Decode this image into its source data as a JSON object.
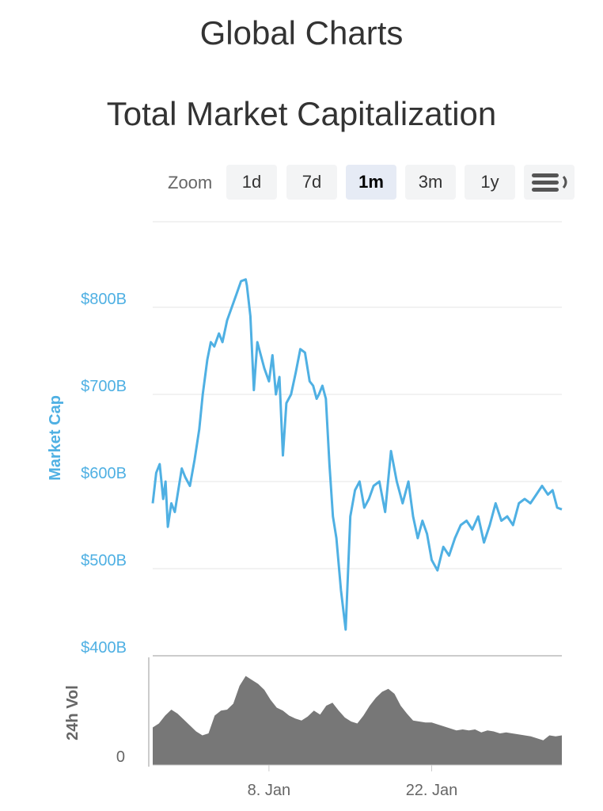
{
  "page": {
    "title": "Global Charts"
  },
  "zoom": {
    "label": "Zoom",
    "buttons": [
      "1d",
      "7d",
      "1m",
      "3m",
      "1y"
    ],
    "active": "1m"
  },
  "chart_data": {
    "type": "line",
    "title": "Total Market Capitalization",
    "colors": {
      "market_cap": "#4fb0e3",
      "volume": "#777777",
      "grid": "#e6e6e6",
      "axis_label": "#4fb0e3"
    },
    "market_cap": {
      "ylabel": "Market Cap",
      "ylim": [
        400,
        850
      ],
      "yticks": [
        400,
        500,
        600,
        700,
        800
      ],
      "ytick_labels": [
        "$400B",
        "$500B",
        "$600B",
        "$700B",
        "$800B"
      ],
      "unit": "billions USD",
      "x_days": [
        0.0,
        0.3,
        0.6,
        0.9,
        1.1,
        1.3,
        1.6,
        1.9,
        2.2,
        2.5,
        2.8,
        3.2,
        3.6,
        4.0,
        4.3,
        4.7,
        5.0,
        5.3,
        5.7,
        6.0,
        6.4,
        6.8,
        7.2,
        7.6,
        8.0,
        8.1,
        8.4,
        8.7,
        9.0,
        9.3,
        9.6,
        10.0,
        10.3,
        10.6,
        10.9,
        11.2,
        11.5,
        11.9,
        12.3,
        12.7,
        13.1,
        13.5,
        13.8,
        14.1,
        14.3,
        14.6,
        14.9,
        15.2,
        15.5,
        15.8,
        16.2,
        16.6,
        17.0,
        17.4,
        17.8,
        18.2,
        18.6,
        19.0,
        19.5,
        20.0,
        20.5,
        21.0,
        21.5,
        22.0,
        22.4,
        22.8,
        23.2,
        23.6,
        24.0,
        24.5,
        25.0,
        25.5,
        26.0,
        26.5,
        27.0,
        27.5,
        28.0,
        28.5,
        29.0,
        29.5,
        30.0,
        30.5,
        31.0,
        31.5,
        32.0,
        32.5,
        33.0,
        33.5,
        34.0,
        34.4,
        34.8,
        35.2
      ],
      "values": [
        575,
        610,
        620,
        580,
        600,
        548,
        575,
        565,
        590,
        615,
        605,
        595,
        625,
        660,
        700,
        740,
        760,
        755,
        770,
        760,
        785,
        800,
        815,
        830,
        832,
        825,
        790,
        705,
        760,
        745,
        730,
        715,
        745,
        700,
        720,
        630,
        690,
        700,
        725,
        752,
        748,
        715,
        710,
        695,
        700,
        710,
        695,
        620,
        560,
        535,
        475,
        430,
        560,
        590,
        600,
        570,
        580,
        595,
        600,
        565,
        635,
        600,
        575,
        600,
        560,
        535,
        555,
        540,
        510,
        498,
        525,
        515,
        535,
        550,
        555,
        545,
        560,
        530,
        550,
        575,
        555,
        560,
        550,
        575,
        580,
        575,
        585,
        595,
        585,
        590,
        570,
        568
      ]
    },
    "volume": {
      "ylabel": "24h Vol",
      "ytick_labels": [
        "0"
      ],
      "values": [
        0.38,
        0.42,
        0.5,
        0.56,
        0.52,
        0.46,
        0.4,
        0.34,
        0.3,
        0.32,
        0.5,
        0.55,
        0.56,
        0.62,
        0.8,
        0.9,
        0.86,
        0.82,
        0.76,
        0.66,
        0.58,
        0.55,
        0.5,
        0.47,
        0.45,
        0.49,
        0.55,
        0.51,
        0.6,
        0.63,
        0.55,
        0.48,
        0.44,
        0.42,
        0.5,
        0.6,
        0.68,
        0.74,
        0.77,
        0.72,
        0.6,
        0.52,
        0.45,
        0.44,
        0.43,
        0.43,
        0.41,
        0.39,
        0.37,
        0.35,
        0.36,
        0.35,
        0.36,
        0.33,
        0.35,
        0.34,
        0.32,
        0.33,
        0.32,
        0.31,
        0.3,
        0.29,
        0.27,
        0.25,
        0.3,
        0.29,
        0.3
      ]
    },
    "xaxis": {
      "ticks": [
        {
          "day": 10.0,
          "label": "8. Jan"
        },
        {
          "day": 24.0,
          "label": "22. Jan"
        }
      ]
    }
  }
}
